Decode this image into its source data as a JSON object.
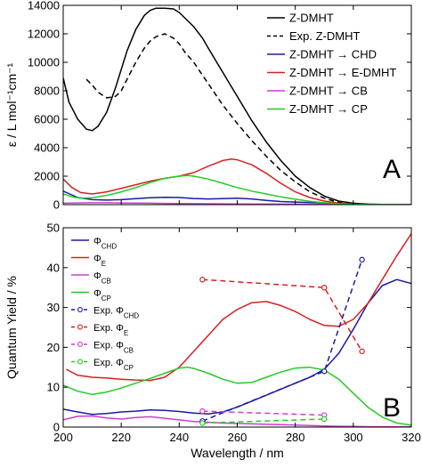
{
  "chart_data": [
    {
      "type": "line",
      "panel_label": "A",
      "ylabel": "ε / L mol⁻¹cm⁻¹",
      "xlabel": "",
      "xlim": [
        200,
        320
      ],
      "ylim": [
        0,
        14000
      ],
      "yticks": [
        0,
        2000,
        4000,
        6000,
        8000,
        10000,
        12000,
        14000
      ],
      "grid": false,
      "legend": "top-right",
      "series": [
        {
          "name": "Z-DMHT",
          "color": "#000000",
          "dash": "solid",
          "marker": "none",
          "x": [
            200,
            202,
            205,
            208,
            210,
            212,
            215,
            218,
            220,
            222,
            225,
            228,
            230,
            232,
            235,
            238,
            240,
            242,
            245,
            248,
            250,
            255,
            260,
            265,
            270,
            275,
            280,
            285,
            290,
            295,
            300,
            305,
            310,
            315,
            320
          ],
          "y": [
            8900,
            7200,
            6000,
            5300,
            5200,
            5500,
            6500,
            8200,
            9500,
            10800,
            12300,
            13300,
            13650,
            13800,
            13800,
            13750,
            13500,
            13100,
            12500,
            11700,
            11000,
            9300,
            7600,
            5900,
            4400,
            3100,
            2000,
            1200,
            600,
            250,
            100,
            40,
            20,
            10,
            5
          ]
        },
        {
          "name": "Exp. Z-DMHT",
          "color": "#000000",
          "dash": "6,4",
          "marker": "none",
          "x": [
            208,
            210,
            212,
            215,
            218,
            220,
            222,
            225,
            228,
            230,
            232,
            235,
            238,
            240,
            242,
            245,
            248,
            250,
            255,
            260,
            265,
            270,
            275,
            280,
            285,
            290,
            295,
            300,
            305,
            310,
            315,
            320
          ],
          "y": [
            8800,
            8400,
            7900,
            7500,
            7600,
            8000,
            8800,
            10000,
            11000,
            11500,
            11800,
            12000,
            11700,
            11300,
            10700,
            10000,
            9100,
            8500,
            7000,
            5700,
            4500,
            3400,
            2400,
            1600,
            900,
            450,
            150,
            50,
            20,
            10,
            5,
            5
          ]
        },
        {
          "name": "Z-DMHT → CHD",
          "color": "#1a1aa6",
          "dash": "solid",
          "marker": "none",
          "x": [
            200,
            205,
            210,
            215,
            220,
            225,
            230,
            235,
            240,
            245,
            250,
            255,
            260,
            265,
            270,
            275,
            280,
            285,
            290,
            295,
            300,
            305,
            310,
            315,
            320
          ],
          "y": [
            950,
            500,
            350,
            320,
            350,
            420,
            480,
            520,
            500,
            430,
            400,
            420,
            450,
            400,
            300,
            220,
            180,
            150,
            120,
            80,
            40,
            20,
            10,
            5,
            5
          ]
        },
        {
          "name": "Z-DMHT → E-DMHT",
          "color": "#d62020",
          "dash": "solid",
          "marker": "none",
          "x": [
            200,
            203,
            206,
            210,
            215,
            220,
            225,
            230,
            235,
            240,
            245,
            250,
            255,
            258,
            260,
            265,
            270,
            275,
            280,
            285,
            290,
            295,
            300,
            305,
            310,
            315,
            320
          ],
          "y": [
            1800,
            1200,
            850,
            750,
            900,
            1150,
            1400,
            1650,
            1850,
            2000,
            2250,
            2700,
            3100,
            3200,
            3150,
            2800,
            2200,
            1500,
            900,
            500,
            250,
            100,
            40,
            20,
            10,
            5,
            5
          ]
        },
        {
          "name": "Z-DMHT → CB",
          "color": "#d23ad2",
          "dash": "solid",
          "marker": "none",
          "x": [
            200,
            205,
            210,
            215,
            220,
            225,
            230,
            235,
            240,
            245,
            250,
            260,
            270,
            280,
            290,
            300,
            310,
            320
          ],
          "y": [
            100,
            120,
            130,
            130,
            120,
            110,
            100,
            90,
            80,
            70,
            60,
            50,
            40,
            30,
            20,
            10,
            5,
            5
          ]
        },
        {
          "name": "Z-DMHT → CP",
          "color": "#22cc22",
          "dash": "solid",
          "marker": "none",
          "x": [
            200,
            203,
            206,
            210,
            215,
            220,
            225,
            230,
            235,
            240,
            243,
            245,
            250,
            255,
            260,
            265,
            270,
            275,
            280,
            285,
            290,
            295,
            300,
            305,
            310,
            315,
            320
          ],
          "y": [
            750,
            550,
            450,
            480,
            650,
            900,
            1200,
            1550,
            1850,
            2000,
            2050,
            2000,
            1800,
            1500,
            1200,
            950,
            750,
            550,
            380,
            240,
            130,
            60,
            25,
            10,
            5,
            5,
            5
          ]
        }
      ]
    },
    {
      "type": "line",
      "panel_label": "B",
      "ylabel": "Quantum Yield / %",
      "xlabel": "Wavelength / nm",
      "xlim": [
        200,
        320
      ],
      "ylim": [
        0,
        50
      ],
      "xticks": [
        200,
        220,
        240,
        260,
        280,
        300,
        320
      ],
      "yticks": [
        0,
        10,
        20,
        30,
        40,
        50
      ],
      "grid": false,
      "legend": "top-left",
      "series": [
        {
          "name": "Φ",
          "sub": "CHD",
          "color": "#1a1aa6",
          "dash": "solid",
          "marker": "none",
          "x": [
            200,
            205,
            210,
            215,
            220,
            225,
            230,
            235,
            240,
            245,
            250,
            255,
            260,
            265,
            270,
            275,
            280,
            285,
            290,
            295,
            300,
            305,
            310,
            315,
            320
          ],
          "y": [
            4.5,
            3.8,
            3.2,
            3.4,
            3.8,
            4.0,
            4.3,
            4.2,
            3.9,
            3.5,
            3.3,
            3.8,
            5.0,
            6.5,
            8.0,
            9.5,
            11.0,
            12.5,
            14.5,
            18.5,
            24.5,
            31.0,
            35.5,
            37.0,
            36.0
          ]
        },
        {
          "name": "Φ",
          "sub": "E",
          "color": "#d62020",
          "dash": "solid",
          "marker": "none",
          "x": [
            201,
            205,
            210,
            215,
            220,
            225,
            230,
            235,
            240,
            245,
            250,
            255,
            260,
            265,
            270,
            275,
            280,
            285,
            290,
            295,
            300,
            305,
            310,
            315,
            320
          ],
          "y": [
            14.5,
            13.0,
            12.5,
            12.3,
            12.0,
            11.8,
            11.7,
            12.5,
            15.0,
            19.0,
            23.0,
            27.0,
            29.5,
            31.2,
            31.5,
            30.5,
            29.0,
            27.0,
            25.5,
            25.3,
            27.0,
            31.0,
            37.0,
            43.0,
            48.5
          ]
        },
        {
          "name": "Φ",
          "sub": "CB",
          "color": "#d23ad2",
          "dash": "solid",
          "marker": "none",
          "x": [
            200,
            205,
            210,
            215,
            220,
            225,
            230,
            235,
            240,
            245,
            250,
            255,
            260,
            265,
            270,
            275,
            280,
            285,
            290,
            295,
            300,
            305,
            310,
            315,
            320
          ],
          "y": [
            1.8,
            2.7,
            2.8,
            2.3,
            2.0,
            2.4,
            2.6,
            2.2,
            1.8,
            1.4,
            1.2,
            1.0,
            0.9,
            0.8,
            0.7,
            0.6,
            0.5,
            0.4,
            0.3,
            0.2,
            0.15,
            0.1,
            0.1,
            0.1,
            0.1
          ]
        },
        {
          "name": "Φ",
          "sub": "CP",
          "color": "#22cc22",
          "dash": "solid",
          "marker": "none",
          "x": [
            200,
            205,
            210,
            215,
            220,
            225,
            230,
            235,
            240,
            243,
            245,
            250,
            255,
            260,
            265,
            270,
            275,
            280,
            285,
            290,
            295,
            300,
            305,
            310,
            315,
            320
          ],
          "y": [
            10.5,
            9.0,
            8.2,
            8.8,
            9.8,
            11.0,
            12.2,
            13.5,
            14.8,
            15.0,
            14.7,
            13.5,
            12.0,
            11.0,
            11.2,
            12.5,
            13.8,
            14.8,
            15.0,
            14.3,
            12.0,
            8.5,
            5.0,
            2.5,
            1.0,
            0.5
          ]
        },
        {
          "name": "Exp. Φ",
          "sub": "CHD",
          "color": "#1a1aa6",
          "dash": "6,4",
          "marker": "circle",
          "x": [
            248,
            290,
            303
          ],
          "y": [
            1.5,
            14.0,
            42.0
          ]
        },
        {
          "name": "Exp. Φ",
          "sub": "E",
          "color": "#d62020",
          "dash": "6,4",
          "marker": "circle",
          "x": [
            248,
            290,
            303
          ],
          "y": [
            37.0,
            35.0,
            19.0
          ]
        },
        {
          "name": "Exp. Φ",
          "sub": "CB",
          "color": "#d23ad2",
          "dash": "6,4",
          "marker": "circle",
          "x": [
            248,
            290
          ],
          "y": [
            4.0,
            3.0
          ]
        },
        {
          "name": "Exp. Φ",
          "sub": "CP",
          "color": "#22cc22",
          "dash": "6,4",
          "marker": "circle",
          "x": [
            248,
            290
          ],
          "y": [
            1.0,
            2.0
          ]
        }
      ]
    }
  ]
}
